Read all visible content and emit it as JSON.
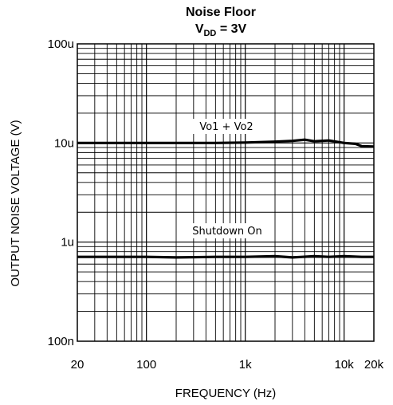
{
  "chart_data": {
    "type": "line",
    "title": "Noise Floor",
    "subtitle_main": "V",
    "subtitle_sub": "DD",
    "subtitle_rest": " = 3V",
    "xlabel": "FREQUENCY (Hz)",
    "ylabel": "OUTPUT NOISE VOLTAGE (V)",
    "x_scale": "log",
    "y_scale": "log",
    "xlim": [
      20,
      20000
    ],
    "ylim": [
      1e-07,
      0.0001
    ],
    "grid": true,
    "x_ticks": [
      {
        "value": 20,
        "label": "20"
      },
      {
        "value": 100,
        "label": "100"
      },
      {
        "value": 1000,
        "label": "1k"
      },
      {
        "value": 10000,
        "label": "10k"
      },
      {
        "value": 20000,
        "label": "20k"
      }
    ],
    "y_ticks": [
      {
        "value": 1e-07,
        "label": "100n"
      },
      {
        "value": 1e-06,
        "label": "1u"
      },
      {
        "value": 1e-05,
        "label": "10u"
      },
      {
        "value": 0.0001,
        "label": "100u"
      }
    ],
    "series": [
      {
        "name": "Vo1 + Vo2",
        "x": [
          20,
          50,
          100,
          200,
          500,
          1000,
          2000,
          3000,
          4000,
          5000,
          7000,
          10000,
          13000,
          15000,
          20000
        ],
        "y": [
          1e-05,
          1e-05,
          1e-05,
          1e-05,
          1e-05,
          1.01e-05,
          1.03e-05,
          1.05e-05,
          1.08e-05,
          1.04e-05,
          1.06e-05,
          1e-05,
          9.8e-06,
          9.3e-06,
          9.2e-06
        ]
      },
      {
        "name": "Shutdown On",
        "x": [
          20,
          50,
          100,
          200,
          500,
          1000,
          2000,
          3000,
          5000,
          7000,
          10000,
          15000,
          20000
        ],
        "y": [
          7.1e-07,
          7.1e-07,
          7.1e-07,
          7e-07,
          7.1e-07,
          7.1e-07,
          7.2e-07,
          7e-07,
          7.2e-07,
          7.1e-07,
          7.2e-07,
          7.1e-07,
          7.1e-07
        ]
      }
    ]
  }
}
